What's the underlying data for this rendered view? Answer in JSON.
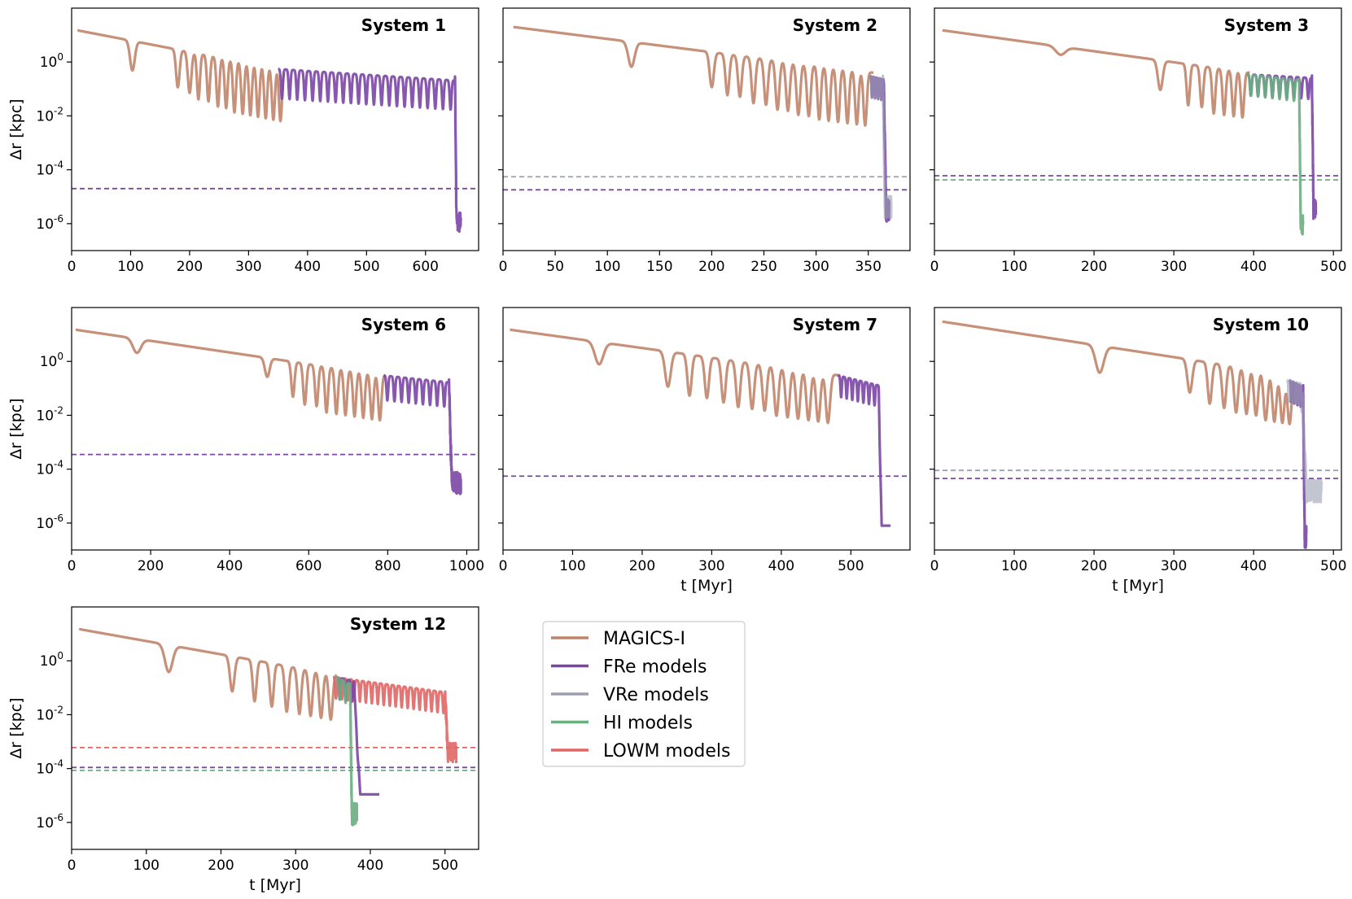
{
  "colors": {
    "magics": "#C0846A",
    "fre": "#7B46A6",
    "vre": "#9AA0B0",
    "hi": "#6AAE82",
    "lowm": "#E06666"
  },
  "legend": {
    "entries": [
      {
        "label": "MAGICS-I",
        "color": "magics"
      },
      {
        "label": "FRe models",
        "color": "fre"
      },
      {
        "label": "VRe models",
        "color": "vre"
      },
      {
        "label": "HI models",
        "color": "hi"
      },
      {
        "label": "LOWM models",
        "color": "lowm"
      }
    ]
  },
  "chart_data": [
    {
      "type": "line",
      "title": "System 1",
      "xlabel": "",
      "ylabel": "Δr [kpc]",
      "yscale": "log",
      "xlim": [
        0,
        690
      ],
      "ylim": [
        1e-07,
        100.0
      ],
      "xticks": [
        "0",
        "100",
        "200",
        "300",
        "400",
        "500",
        "600"
      ],
      "yticks": [
        "10^0",
        "10^-2",
        "10^-4",
        "10^-6"
      ],
      "show_ytick_labels": true,
      "show_xlabel": false,
      "curves": [
        {
          "model": "magics",
          "t_start": 10,
          "t_end": 360,
          "a": 0.9,
          "c_start": 15,
          "c_end": 0.5,
          "dips": [
            {
              "t": 103,
              "depth": 0.08,
              "w": 4
            },
            {
              "t": 180,
              "depth": 0.04,
              "w": 3
            },
            {
              "t": 200,
              "depth": 0.03,
              "w": 3
            },
            {
              "t": 215,
              "depth": 0.02,
              "w": 2.5
            },
            {
              "t": 232,
              "depth": 0.02,
              "w": 2.5
            },
            {
              "t": 248,
              "depth": 0.015,
              "w": 2.5
            },
            {
              "t": 262,
              "depth": 0.015,
              "w": 2.5
            },
            {
              "t": 276,
              "depth": 0.012,
              "w": 2.5
            },
            {
              "t": 290,
              "depth": 0.012,
              "w": 2.5
            },
            {
              "t": 303,
              "depth": 0.012,
              "w": 2.5
            },
            {
              "t": 316,
              "depth": 0.012,
              "w": 2.5
            },
            {
              "t": 329,
              "depth": 0.012,
              "w": 2.5
            },
            {
              "t": 342,
              "depth": 0.012,
              "w": 2.5
            },
            {
              "t": 354,
              "depth": 0.012,
              "w": 2.5
            }
          ]
        },
        {
          "model": "fre",
          "t_start": 350,
          "t_end": 660,
          "a": 0.9,
          "c_start": 0.55,
          "c_end": 0.2,
          "period": 13,
          "depth": 0.015,
          "decay_t": 650,
          "final": 1e-06,
          "noise": true
        }
      ],
      "hlines": [
        {
          "model": "fre",
          "y": 2e-05
        }
      ]
    },
    {
      "type": "line",
      "title": "System 2",
      "xlabel": "",
      "ylabel": "",
      "yscale": "log",
      "xlim": [
        0,
        390
      ],
      "ylim": [
        1e-07,
        100.0
      ],
      "xticks": [
        "0",
        "50",
        "100",
        "150",
        "200",
        "250",
        "300",
        "350"
      ],
      "yticks": [
        "10^0",
        "10^-2",
        "10^-4",
        "10^-6"
      ],
      "show_ytick_labels": false,
      "show_xlabel": false,
      "curves": [
        {
          "model": "magics",
          "t_start": 10,
          "t_end": 355,
          "a": 0.9,
          "c_start": 20,
          "c_end": 0.4,
          "dips": [
            {
              "t": 123,
              "depth": 0.12,
              "w": 3
            },
            {
              "t": 200,
              "depth": 0.05,
              "w": 2
            },
            {
              "t": 215,
              "depth": 0.03,
              "w": 1.8
            },
            {
              "t": 227,
              "depth": 0.03,
              "w": 1.8
            },
            {
              "t": 240,
              "depth": 0.02,
              "w": 1.8
            },
            {
              "t": 252,
              "depth": 0.02,
              "w": 1.8
            },
            {
              "t": 263,
              "depth": 0.015,
              "w": 1.8
            },
            {
              "t": 273,
              "depth": 0.015,
              "w": 1.8
            },
            {
              "t": 283,
              "depth": 0.012,
              "w": 1.8
            },
            {
              "t": 293,
              "depth": 0.012,
              "w": 1.8
            },
            {
              "t": 303,
              "depth": 0.01,
              "w": 1.6
            },
            {
              "t": 312,
              "depth": 0.01,
              "w": 1.6
            },
            {
              "t": 321,
              "depth": 0.01,
              "w": 1.6
            },
            {
              "t": 330,
              "depth": 0.01,
              "w": 1.6
            },
            {
              "t": 339,
              "depth": 0.01,
              "w": 1.6
            },
            {
              "t": 347,
              "depth": 0.01,
              "w": 1.6
            }
          ]
        },
        {
          "model": "fre",
          "t_start": 352,
          "t_end": 370,
          "a": 0.9,
          "c_start": 0.3,
          "c_end": 0.2,
          "period": 3,
          "depth": 0.05,
          "decay_t": 365,
          "final": 3e-06,
          "noise": true
        },
        {
          "model": "vre",
          "t_start": 352,
          "t_end": 372,
          "a": 0.6,
          "c_start": 0.3,
          "c_end": 0.2,
          "period": 3,
          "depth": 0.05,
          "decay_t": 364,
          "final": 4e-06,
          "noise": true
        }
      ],
      "hlines": [
        {
          "model": "vre",
          "y": 5.5e-05
        },
        {
          "model": "fre",
          "y": 1.8e-05
        }
      ]
    },
    {
      "type": "line",
      "title": "System 3",
      "xlabel": "",
      "ylabel": "",
      "yscale": "log",
      "xlim": [
        0,
        510
      ],
      "ylim": [
        1e-07,
        100.0
      ],
      "xticks": [
        "0",
        "100",
        "200",
        "300",
        "400",
        "500"
      ],
      "yticks": [
        "10^0",
        "10^-2",
        "10^-4",
        "10^-6"
      ],
      "show_ytick_labels": false,
      "show_xlabel": false,
      "curves": [
        {
          "model": "magics",
          "t_start": 10,
          "t_end": 395,
          "a": 0.9,
          "c_start": 15,
          "c_end": 0.4,
          "dips": [
            {
              "t": 158,
              "depth": 0.5,
              "w": 6
            },
            {
              "t": 283,
              "depth": 0.08,
              "w": 3
            },
            {
              "t": 318,
              "depth": 0.03,
              "w": 2
            },
            {
              "t": 335,
              "depth": 0.03,
              "w": 2
            },
            {
              "t": 350,
              "depth": 0.02,
              "w": 2
            },
            {
              "t": 363,
              "depth": 0.02,
              "w": 2
            },
            {
              "t": 375,
              "depth": 0.02,
              "w": 2
            },
            {
              "t": 386,
              "depth": 0.02,
              "w": 2
            }
          ]
        },
        {
          "model": "fre",
          "t_start": 392,
          "t_end": 478,
          "a": 0.9,
          "c_start": 0.35,
          "c_end": 0.25,
          "period": 9,
          "depth": 0.05,
          "decay_t": 473,
          "final": 3e-06,
          "noise": true
        },
        {
          "model": "hi",
          "t_start": 392,
          "t_end": 462,
          "a": 0.9,
          "c_start": 0.35,
          "c_end": 0.2,
          "period": 9,
          "depth": 0.05,
          "decay_t": 457,
          "final": 8e-07,
          "noise": true
        }
      ],
      "hlines": [
        {
          "model": "fre",
          "y": 6e-05
        },
        {
          "model": "hi",
          "y": 4.2e-05
        }
      ]
    },
    {
      "type": "line",
      "title": "System 6",
      "xlabel": "",
      "ylabel": "Δr [kpc]",
      "yscale": "log",
      "xlim": [
        0,
        1030
      ],
      "ylim": [
        1e-07,
        100.0
      ],
      "xticks": [
        "0",
        "200",
        "400",
        "600",
        "800",
        "1000"
      ],
      "yticks": [
        "10^0",
        "10^-2",
        "10^-4",
        "10^-6"
      ],
      "show_ytick_labels": true,
      "show_xlabel": false,
      "curves": [
        {
          "model": "magics",
          "t_start": 10,
          "t_end": 795,
          "a": 0.9,
          "c_start": 15,
          "c_end": 0.3,
          "dips": [
            {
              "t": 165,
              "depth": 0.3,
              "w": 10
            },
            {
              "t": 495,
              "depth": 0.2,
              "w": 6
            },
            {
              "t": 560,
              "depth": 0.05,
              "w": 4
            },
            {
              "t": 590,
              "depth": 0.03,
              "w": 4
            },
            {
              "t": 620,
              "depth": 0.03,
              "w": 4
            },
            {
              "t": 645,
              "depth": 0.02,
              "w": 4
            },
            {
              "t": 670,
              "depth": 0.02,
              "w": 4
            },
            {
              "t": 693,
              "depth": 0.02,
              "w": 4
            },
            {
              "t": 716,
              "depth": 0.02,
              "w": 4
            },
            {
              "t": 738,
              "depth": 0.02,
              "w": 4
            },
            {
              "t": 760,
              "depth": 0.02,
              "w": 4
            },
            {
              "t": 780,
              "depth": 0.02,
              "w": 4
            }
          ]
        },
        {
          "model": "fre",
          "t_start": 790,
          "t_end": 985,
          "a": 0.9,
          "c_start": 0.3,
          "c_end": 0.15,
          "period": 18,
          "depth": 0.03,
          "decay_t": 955,
          "final": 3e-05,
          "noise": true
        }
      ],
      "hlines": [
        {
          "model": "fre",
          "y": 0.00035
        }
      ]
    },
    {
      "type": "line",
      "title": "System 7",
      "xlabel": "t [Myr]",
      "ylabel": "",
      "yscale": "log",
      "xlim": [
        0,
        585
      ],
      "ylim": [
        1e-07,
        100.0
      ],
      "xticks": [
        "0",
        "100",
        "200",
        "300",
        "400",
        "500"
      ],
      "yticks": [
        "10^0",
        "10^-2",
        "10^-4",
        "10^-6"
      ],
      "show_ytick_labels": false,
      "show_xlabel": true,
      "curves": [
        {
          "model": "magics",
          "t_start": 10,
          "t_end": 485,
          "a": 0.9,
          "c_start": 15,
          "c_end": 0.3,
          "dips": [
            {
              "t": 138,
              "depth": 0.15,
              "w": 6
            },
            {
              "t": 237,
              "depth": 0.05,
              "w": 4
            },
            {
              "t": 268,
              "depth": 0.03,
              "w": 3
            },
            {
              "t": 293,
              "depth": 0.03,
              "w": 3
            },
            {
              "t": 317,
              "depth": 0.025,
              "w": 3
            },
            {
              "t": 338,
              "depth": 0.02,
              "w": 3
            },
            {
              "t": 358,
              "depth": 0.02,
              "w": 3
            },
            {
              "t": 376,
              "depth": 0.02,
              "w": 3
            },
            {
              "t": 393,
              "depth": 0.015,
              "w": 3
            },
            {
              "t": 409,
              "depth": 0.015,
              "w": 3
            },
            {
              "t": 424,
              "depth": 0.015,
              "w": 3
            },
            {
              "t": 439,
              "depth": 0.015,
              "w": 3
            },
            {
              "t": 453,
              "depth": 0.015,
              "w": 3
            },
            {
              "t": 467,
              "depth": 0.015,
              "w": 3
            }
          ]
        },
        {
          "model": "fre",
          "t_start": 482,
          "t_end": 557,
          "a": 0.9,
          "c_start": 0.3,
          "c_end": 0.1,
          "period": 8,
          "depth": 0.05,
          "decay_t": 540,
          "final": 8e-07,
          "noise": false
        }
      ],
      "hlines": [
        {
          "model": "fre",
          "y": 5.5e-05
        }
      ]
    },
    {
      "type": "line",
      "title": "System 10",
      "xlabel": "t [Myr]",
      "ylabel": "",
      "yscale": "log",
      "xlim": [
        0,
        510
      ],
      "ylim": [
        1e-07,
        100.0
      ],
      "xticks": [
        "0",
        "100",
        "200",
        "300",
        "400",
        "500"
      ],
      "yticks": [
        "10^0",
        "10^-2",
        "10^-4",
        "10^-6"
      ],
      "show_ytick_labels": false,
      "show_xlabel": true,
      "curves": [
        {
          "model": "magics",
          "t_start": 10,
          "t_end": 450,
          "a": 0.9,
          "c_start": 30,
          "c_end": 0.3,
          "dips": [
            {
              "t": 207,
              "depth": 0.1,
              "w": 5
            },
            {
              "t": 320,
              "depth": 0.06,
              "w": 3
            },
            {
              "t": 345,
              "depth": 0.03,
              "w": 2.5
            },
            {
              "t": 363,
              "depth": 0.025,
              "w": 2.5
            },
            {
              "t": 378,
              "depth": 0.02,
              "w": 2.5
            },
            {
              "t": 391,
              "depth": 0.02,
              "w": 2.5
            },
            {
              "t": 403,
              "depth": 0.02,
              "w": 2.5
            },
            {
              "t": 415,
              "depth": 0.015,
              "w": 2.5
            },
            {
              "t": 426,
              "depth": 0.015,
              "w": 2.5
            },
            {
              "t": 436,
              "depth": 0.015,
              "w": 2.5
            },
            {
              "t": 445,
              "depth": 0.015,
              "w": 2.5
            }
          ]
        },
        {
          "model": "fre",
          "t_start": 445,
          "t_end": 466,
          "a": 0.9,
          "c_start": 0.2,
          "c_end": 0.1,
          "period": 4,
          "depth": 0.05,
          "decay_t": 462,
          "final": 3e-07,
          "noise": true
        },
        {
          "model": "vre",
          "t_start": 442,
          "t_end": 485,
          "a": 0.6,
          "c_start": 0.2,
          "c_end": 0.1,
          "period": 4,
          "depth": 0.05,
          "decay_t": 460,
          "final": 1.5e-05,
          "noise": true
        }
      ],
      "hlines": [
        {
          "model": "vre",
          "y": 9e-05
        },
        {
          "model": "fre",
          "y": 4.5e-05
        }
      ]
    },
    {
      "type": "line",
      "title": "System 12",
      "xlabel": "t [Myr]",
      "ylabel": "Δr [kpc]",
      "yscale": "log",
      "xlim": [
        0,
        545
      ],
      "ylim": [
        1e-07,
        100.0
      ],
      "xticks": [
        "0",
        "100",
        "200",
        "300",
        "400",
        "500"
      ],
      "yticks": [
        "10^0",
        "10^-2",
        "10^-4",
        "10^-6"
      ],
      "show_ytick_labels": true,
      "show_xlabel": true,
      "curves": [
        {
          "model": "magics",
          "t_start": 10,
          "t_end": 355,
          "a": 0.9,
          "c_start": 15,
          "c_end": 0.3,
          "dips": [
            {
              "t": 130,
              "depth": 0.1,
              "w": 5
            },
            {
              "t": 215,
              "depth": 0.05,
              "w": 3
            },
            {
              "t": 245,
              "depth": 0.03,
              "w": 2.5
            },
            {
              "t": 268,
              "depth": 0.025,
              "w": 2.5
            },
            {
              "t": 288,
              "depth": 0.02,
              "w": 2.5
            },
            {
              "t": 305,
              "depth": 0.02,
              "w": 2.5
            },
            {
              "t": 320,
              "depth": 0.02,
              "w": 2.5
            },
            {
              "t": 334,
              "depth": 0.02,
              "w": 2.5
            },
            {
              "t": 347,
              "depth": 0.02,
              "w": 2.5
            }
          ]
        },
        {
          "model": "lowm",
          "t_start": 350,
          "t_end": 515,
          "a": 0.9,
          "c_start": 0.25,
          "c_end": 0.06,
          "period": 8,
          "depth": 0.05,
          "decay_t": 500,
          "final": 0.00035,
          "noise": true
        },
        {
          "model": "fre",
          "t_start": 355,
          "t_end": 412,
          "a": 0.9,
          "c_start": 0.25,
          "c_end": 0.1,
          "period": 8,
          "depth": 0.05,
          "decay_t": 378,
          "final": 1.1e-05,
          "noise": false
        },
        {
          "model": "hi",
          "t_start": 355,
          "t_end": 382,
          "a": 0.9,
          "c_start": 0.25,
          "c_end": 0.1,
          "period": 8,
          "depth": 0.05,
          "decay_t": 373,
          "final": 2e-06,
          "noise": true
        }
      ],
      "hlines": [
        {
          "model": "lowm",
          "y": 0.0006
        },
        {
          "model": "fre",
          "y": 0.00011
        },
        {
          "model": "hi",
          "y": 8.5e-05
        }
      ]
    }
  ]
}
